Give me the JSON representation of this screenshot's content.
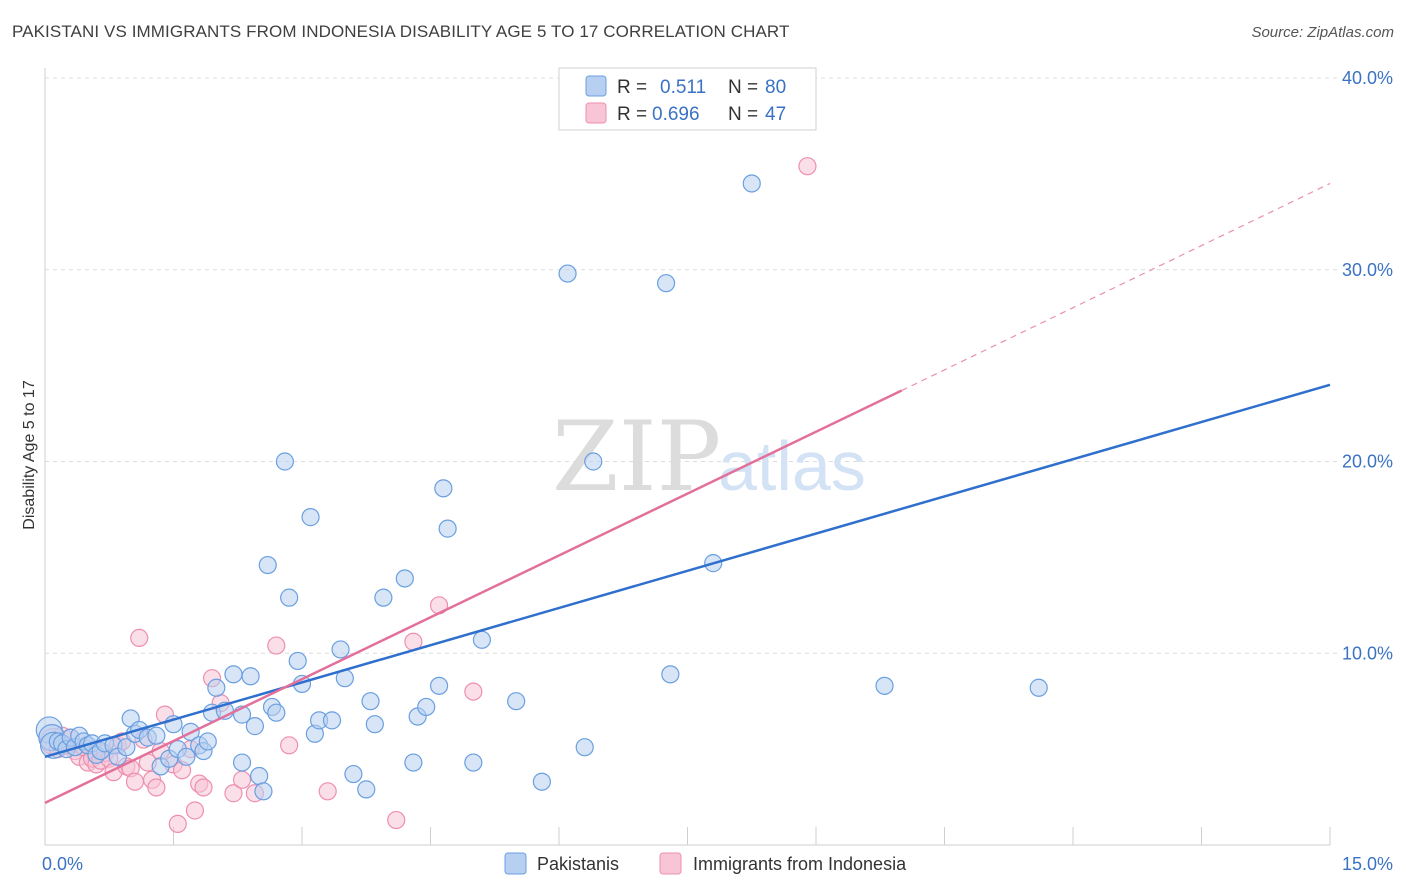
{
  "title": "PAKISTANI VS IMMIGRANTS FROM INDONESIA DISABILITY AGE 5 TO 17 CORRELATION CHART",
  "source": "Source: ZipAtlas.com",
  "watermark": {
    "zip": "ZIP",
    "atlas": "atlas"
  },
  "legend": {
    "rows": [
      {
        "r_label": "R =",
        "r_value": "0.511",
        "n_label": "N =",
        "n_value": "80"
      },
      {
        "r_label": "R =",
        "r_value": "0.696",
        "n_label": "N =",
        "n_value": "47"
      }
    ]
  },
  "chart_data": {
    "type": "scatter",
    "xlabel": "",
    "ylabel": "Disability Age 5 to 17",
    "xlim": [
      0,
      15
    ],
    "ylim": [
      0,
      40
    ],
    "x_tick_labels": [
      {
        "value": 0,
        "label": "0.0%"
      },
      {
        "value": 15,
        "label": "15.0%"
      }
    ],
    "y_tick_labels": [
      {
        "value": 10,
        "label": "10.0%"
      },
      {
        "value": 20,
        "label": "20.0%"
      },
      {
        "value": 30,
        "label": "30.0%"
      },
      {
        "value": 40,
        "label": "40.0%"
      }
    ],
    "grid": true,
    "legend_position": "top-center",
    "series": [
      {
        "name": "Pakistanis",
        "color": "#6a9fe0",
        "fill": "#b7cff0",
        "trend": {
          "x": [
            0,
            15
          ],
          "y": [
            4.6,
            24.0
          ],
          "color": "#2f6fcd"
        },
        "points": [
          [
            0.05,
            6.0
          ],
          [
            0.08,
            5.6
          ],
          [
            0.1,
            5.2
          ],
          [
            0.15,
            5.4
          ],
          [
            0.2,
            5.3
          ],
          [
            0.25,
            5.0
          ],
          [
            0.3,
            5.6
          ],
          [
            0.35,
            5.1
          ],
          [
            0.4,
            5.7
          ],
          [
            0.45,
            5.4
          ],
          [
            0.5,
            5.2
          ],
          [
            0.55,
            5.3
          ],
          [
            0.6,
            4.7
          ],
          [
            0.65,
            4.9
          ],
          [
            0.7,
            5.3
          ],
          [
            0.8,
            5.2
          ],
          [
            0.85,
            4.6
          ],
          [
            0.95,
            5.1
          ],
          [
            1.0,
            6.6
          ],
          [
            1.05,
            5.8
          ],
          [
            1.1,
            6.0
          ],
          [
            1.2,
            5.6
          ],
          [
            1.3,
            5.7
          ],
          [
            1.35,
            4.1
          ],
          [
            1.45,
            4.5
          ],
          [
            1.5,
            6.3
          ],
          [
            1.55,
            5.0
          ],
          [
            1.65,
            4.6
          ],
          [
            1.7,
            5.9
          ],
          [
            1.8,
            5.2
          ],
          [
            1.85,
            4.9
          ],
          [
            1.9,
            5.4
          ],
          [
            1.95,
            6.9
          ],
          [
            2.0,
            8.2
          ],
          [
            2.1,
            7.0
          ],
          [
            2.2,
            8.9
          ],
          [
            2.3,
            4.3
          ],
          [
            2.3,
            6.8
          ],
          [
            2.4,
            8.8
          ],
          [
            2.45,
            6.2
          ],
          [
            2.5,
            3.6
          ],
          [
            2.55,
            2.8
          ],
          [
            2.6,
            14.6
          ],
          [
            2.65,
            7.2
          ],
          [
            2.7,
            6.9
          ],
          [
            2.8,
            20.0
          ],
          [
            2.85,
            12.9
          ],
          [
            2.95,
            9.6
          ],
          [
            3.0,
            8.4
          ],
          [
            3.1,
            17.1
          ],
          [
            3.15,
            5.8
          ],
          [
            3.2,
            6.5
          ],
          [
            3.35,
            6.5
          ],
          [
            3.45,
            10.2
          ],
          [
            3.5,
            8.7
          ],
          [
            3.6,
            3.7
          ],
          [
            3.75,
            2.9
          ],
          [
            3.8,
            7.5
          ],
          [
            3.85,
            6.3
          ],
          [
            3.95,
            12.9
          ],
          [
            4.2,
            13.9
          ],
          [
            4.3,
            4.3
          ],
          [
            4.35,
            6.7
          ],
          [
            4.45,
            7.2
          ],
          [
            4.6,
            8.3
          ],
          [
            4.65,
            18.6
          ],
          [
            4.7,
            16.5
          ],
          [
            5.0,
            4.3
          ],
          [
            5.1,
            10.7
          ],
          [
            5.5,
            7.5
          ],
          [
            5.8,
            3.3
          ],
          [
            6.1,
            29.8
          ],
          [
            6.3,
            5.1
          ],
          [
            6.4,
            20.0
          ],
          [
            7.25,
            29.3
          ],
          [
            7.3,
            8.9
          ],
          [
            7.8,
            14.7
          ],
          [
            8.25,
            34.5
          ],
          [
            9.8,
            8.3
          ],
          [
            11.6,
            8.2
          ]
        ]
      },
      {
        "name": "Immigrants from Indonesia",
        "color": "#ee8fb0",
        "fill": "#f8c5d6",
        "trend": {
          "x": [
            0,
            10.0
          ],
          "y": [
            2.2,
            23.7
          ],
          "color": "#e2709b"
        },
        "trend_dashed": {
          "x": [
            10.0,
            15
          ],
          "y": [
            23.7,
            34.5
          ],
          "color": "#e98fb0"
        },
        "points": [
          [
            0.1,
            5.4
          ],
          [
            0.15,
            5.0
          ],
          [
            0.2,
            5.7
          ],
          [
            0.25,
            5.2
          ],
          [
            0.3,
            5.6
          ],
          [
            0.35,
            4.9
          ],
          [
            0.4,
            4.6
          ],
          [
            0.45,
            5.1
          ],
          [
            0.5,
            4.3
          ],
          [
            0.55,
            4.5
          ],
          [
            0.6,
            4.2
          ],
          [
            0.65,
            4.4
          ],
          [
            0.7,
            4.8
          ],
          [
            0.75,
            4.5
          ],
          [
            0.8,
            3.8
          ],
          [
            0.85,
            5.2
          ],
          [
            0.9,
            5.4
          ],
          [
            0.95,
            4.1
          ],
          [
            1.0,
            4.0
          ],
          [
            1.05,
            3.3
          ],
          [
            1.1,
            10.8
          ],
          [
            1.15,
            5.5
          ],
          [
            1.2,
            4.3
          ],
          [
            1.25,
            3.4
          ],
          [
            1.3,
            3.0
          ],
          [
            1.35,
            4.9
          ],
          [
            1.4,
            6.8
          ],
          [
            1.5,
            4.2
          ],
          [
            1.55,
            1.1
          ],
          [
            1.6,
            3.9
          ],
          [
            1.7,
            5.0
          ],
          [
            1.75,
            1.8
          ],
          [
            1.8,
            3.2
          ],
          [
            1.85,
            3.0
          ],
          [
            1.95,
            8.7
          ],
          [
            2.05,
            7.4
          ],
          [
            2.2,
            2.7
          ],
          [
            2.3,
            3.4
          ],
          [
            2.45,
            2.7
          ],
          [
            2.7,
            10.4
          ],
          [
            2.85,
            5.2
          ],
          [
            3.3,
            2.8
          ],
          [
            4.1,
            1.3
          ],
          [
            4.3,
            10.6
          ],
          [
            4.6,
            12.5
          ],
          [
            5.0,
            8.0
          ],
          [
            8.9,
            35.4
          ]
        ]
      }
    ]
  }
}
